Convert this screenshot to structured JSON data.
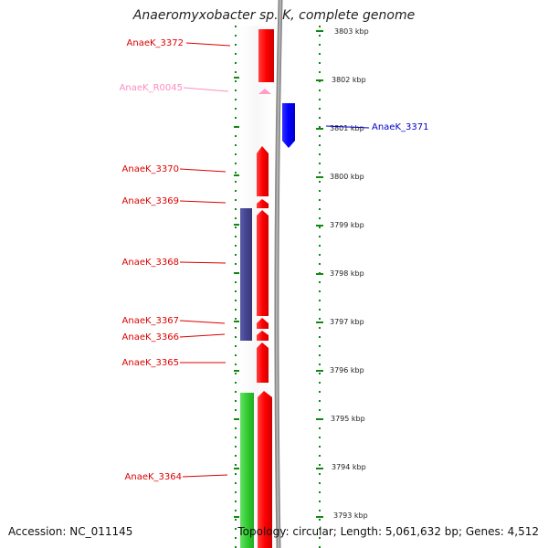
{
  "title": "Anaeromyxobacter sp. K, complete genome",
  "footer": {
    "accession": "Accession: NC_011145",
    "summary": "Topology: circular; Length: 5,061,632 bp; Genes: 4,512"
  },
  "colors": {
    "forward_gene": "#ff0000",
    "reverse_gene": "#0000ff",
    "rna_gene": "#ff9cc8",
    "backbone": "#808080",
    "ruler": "#118811",
    "blue_feature": "#44448f",
    "green_feature": "#33cc33",
    "label_red": "#dd0000",
    "label_pink": "#ff8cc0",
    "label_blue": "#0000cc"
  },
  "kbp_ticks": [
    "3803 kbp",
    "3802 kbp",
    "3801 kbp",
    "3800 kbp",
    "3799 kbp",
    "3798 kbp",
    "3797 kbp",
    "3796 kbp",
    "3795 kbp",
    "3794 kbp",
    "3793 kbp"
  ],
  "genes": [
    {
      "name": "AnaeK_3372",
      "type": "forward",
      "color_key": "label_red"
    },
    {
      "name": "AnaeK_R0045",
      "type": "rna",
      "color_key": "label_pink"
    },
    {
      "name": "AnaeK_3371",
      "type": "reverse",
      "color_key": "label_blue"
    },
    {
      "name": "AnaeK_3370",
      "type": "forward",
      "color_key": "label_red"
    },
    {
      "name": "AnaeK_3369",
      "type": "forward",
      "color_key": "label_red"
    },
    {
      "name": "AnaeK_3368",
      "type": "forward",
      "color_key": "label_red"
    },
    {
      "name": "AnaeK_3367",
      "type": "forward",
      "color_key": "label_red"
    },
    {
      "name": "AnaeK_3366",
      "type": "forward",
      "color_key": "label_red"
    },
    {
      "name": "AnaeK_3365",
      "type": "forward",
      "color_key": "label_red"
    },
    {
      "name": "AnaeK_3364",
      "type": "forward",
      "color_key": "label_red"
    }
  ]
}
